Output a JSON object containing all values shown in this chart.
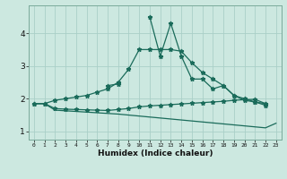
{
  "title": "",
  "xlabel": "Humidex (Indice chaleur)",
  "ylabel": "",
  "background_color": "#cce8e0",
  "grid_color": "#aacfc8",
  "line_color": "#1a6b5a",
  "x": [
    0,
    1,
    2,
    3,
    4,
    5,
    6,
    7,
    8,
    9,
    10,
    11,
    12,
    13,
    14,
    15,
    16,
    17,
    18,
    19,
    20,
    21,
    22,
    23
  ],
  "line1_smooth": [
    1.85,
    1.85,
    1.95,
    2.0,
    2.05,
    2.1,
    2.2,
    2.3,
    2.5,
    2.9,
    3.5,
    3.5,
    3.5,
    3.5,
    3.45,
    3.1,
    2.8,
    2.6,
    2.4,
    2.1,
    1.95,
    1.9,
    1.85,
    null
  ],
  "line2_spiky": [
    null,
    null,
    null,
    null,
    null,
    null,
    null,
    2.4,
    2.45,
    null,
    null,
    4.5,
    3.3,
    4.3,
    3.3,
    2.6,
    2.6,
    2.3,
    2.4,
    2.1,
    2.0,
    1.9,
    1.8,
    null
  ],
  "line3_flat": [
    1.85,
    1.85,
    1.7,
    1.68,
    1.67,
    1.66,
    1.65,
    1.64,
    1.67,
    1.7,
    1.75,
    1.78,
    1.8,
    1.82,
    1.84,
    1.86,
    1.88,
    1.9,
    1.92,
    1.95,
    1.97,
    1.98,
    1.85,
    null
  ],
  "line4_decrease": [
    1.85,
    1.85,
    1.65,
    1.63,
    1.61,
    1.59,
    1.57,
    1.55,
    1.53,
    1.5,
    1.47,
    1.44,
    1.41,
    1.38,
    1.35,
    1.32,
    1.29,
    1.26,
    1.23,
    1.2,
    1.17,
    1.14,
    1.11,
    1.25
  ],
  "ylim": [
    0.75,
    4.85
  ],
  "xlim": [
    -0.5,
    23.5
  ],
  "yticks": [
    1,
    2,
    3,
    4
  ],
  "xticks": [
    0,
    1,
    2,
    3,
    4,
    5,
    6,
    7,
    8,
    9,
    10,
    11,
    12,
    13,
    14,
    15,
    16,
    17,
    18,
    19,
    20,
    21,
    22,
    23
  ],
  "marker": "*",
  "marker_size": 3.5,
  "linewidth": 0.9
}
